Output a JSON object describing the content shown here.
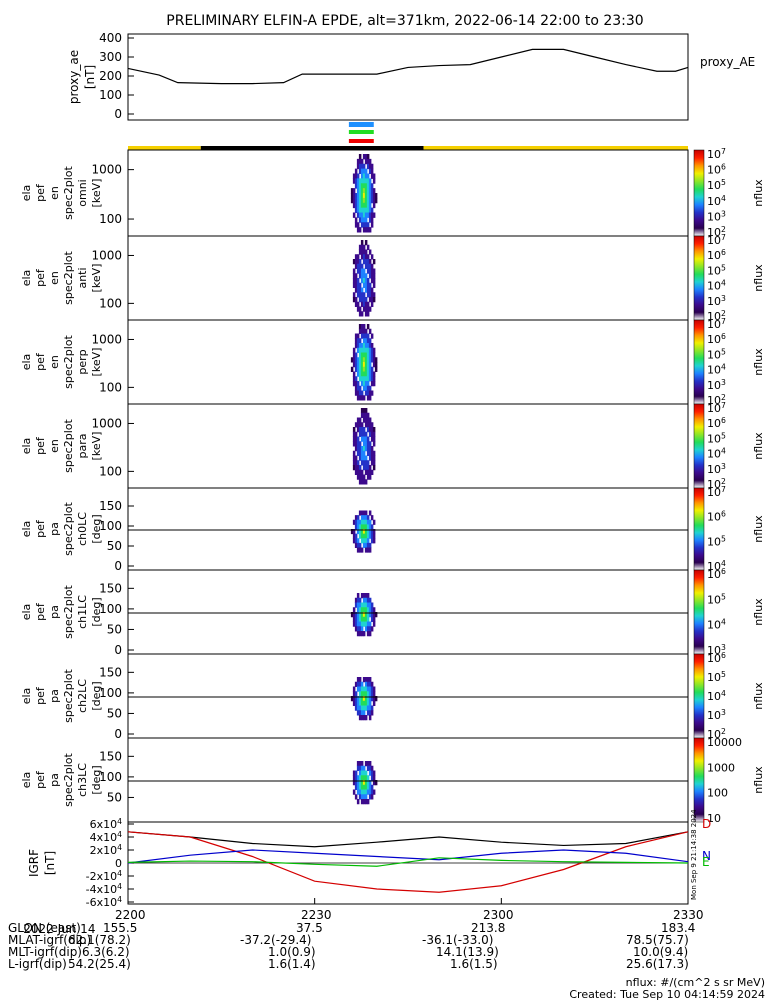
{
  "title": "PRELIMINARY ELFIN-A EPDE, alt=371km, 2022-06-14 22:00 to 23:30",
  "x_axis": {
    "start": "2022-06-14 22:00",
    "end": "2022-06-14 23:30",
    "tick_labels": [
      "2200",
      "2230",
      "2300",
      "2330"
    ],
    "tick_minutes": [
      0,
      30,
      60,
      90
    ]
  },
  "panels": [
    {
      "id": "proxy_ae",
      "ylabel": [
        "proxy_ae",
        "[nT]"
      ],
      "side_label": "proxy_AE",
      "ticks": [
        "0",
        "100",
        "200",
        "300",
        "400"
      ]
    },
    {
      "id": "en_omni",
      "ylabel": [
        "ela",
        "pef",
        "en",
        "spec2plot",
        "omni",
        "[keV]"
      ],
      "ticks": [
        "100",
        "1000"
      ],
      "colorbar": {
        "label": "nflux",
        "ticks": [
          "10^2",
          "10^3",
          "10^4",
          "10^5",
          "10^6",
          "10^7"
        ]
      }
    },
    {
      "id": "en_anti",
      "ylabel": [
        "ela",
        "pef",
        "en",
        "spec2plot",
        "anti",
        "[keV]"
      ],
      "ticks": [
        "100",
        "1000"
      ],
      "colorbar": {
        "label": "nflux",
        "ticks": [
          "10^2",
          "10^3",
          "10^4",
          "10^5",
          "10^6",
          "10^7"
        ]
      }
    },
    {
      "id": "en_perp",
      "ylabel": [
        "ela",
        "pef",
        "en",
        "spec2plot",
        "perp",
        "[keV]"
      ],
      "ticks": [
        "100",
        "1000"
      ],
      "colorbar": {
        "label": "nflux",
        "ticks": [
          "10^2",
          "10^3",
          "10^4",
          "10^5",
          "10^6",
          "10^7"
        ]
      }
    },
    {
      "id": "en_para",
      "ylabel": [
        "ela",
        "pef",
        "en",
        "spec2plot",
        "para",
        "[keV]"
      ],
      "ticks": [
        "100",
        "1000"
      ],
      "colorbar": {
        "label": "nflux",
        "ticks": [
          "10^2",
          "10^3",
          "10^4",
          "10^5",
          "10^6",
          "10^7"
        ]
      }
    },
    {
      "id": "pa_ch0",
      "ylabel": [
        "ela",
        "pef",
        "pa",
        "spec2plot",
        "ch0LC",
        "[deg]"
      ],
      "ticks": [
        "0",
        "50",
        "100",
        "150"
      ],
      "colorbar": {
        "label": "nflux",
        "ticks": [
          "10^4",
          "10^5",
          "10^6",
          "10^7"
        ]
      }
    },
    {
      "id": "pa_ch1",
      "ylabel": [
        "ela",
        "pef",
        "pa",
        "spec2plot",
        "ch1LC",
        "[deg]"
      ],
      "ticks": [
        "0",
        "50",
        "100",
        "150"
      ],
      "colorbar": {
        "label": "nflux",
        "ticks": [
          "10^3",
          "10^4",
          "10^5",
          "10^6"
        ]
      }
    },
    {
      "id": "pa_ch2",
      "ylabel": [
        "ela",
        "pef",
        "pa",
        "spec2plot",
        "ch2LC",
        "[deg]"
      ],
      "ticks": [
        "0",
        "50",
        "100",
        "150"
      ],
      "colorbar": {
        "label": "nflux",
        "ticks": [
          "10^2",
          "10^3",
          "10^4",
          "10^5",
          "10^6"
        ]
      }
    },
    {
      "id": "pa_ch3",
      "ylabel": [
        "ela",
        "pef",
        "pa",
        "spec2plot",
        "ch3LC",
        "[deg]"
      ],
      "ticks": [
        "50",
        "100",
        "150"
      ],
      "colorbar": {
        "label": "nflux",
        "ticks": [
          "10",
          "100",
          "1000",
          "10000"
        ]
      }
    },
    {
      "id": "igrf",
      "ylabel": [
        "IGRF",
        "[nT]"
      ],
      "ticks": [
        "-6x10^4",
        "-4x10^4",
        "-2x10^4",
        "0",
        "2x10^4",
        "4x10^4",
        "6x10^4"
      ],
      "legend": [
        "D",
        "N",
        "E"
      ],
      "stamp": "Mon Sep 9 21:14:38 2024"
    }
  ],
  "footer": {
    "date": "2022 Jun 14",
    "time_row": [
      "2200",
      "2230",
      "2300",
      "2330"
    ],
    "rows": [
      {
        "label": "GLON (east)",
        "values": [
          "155.5",
          "37.5",
          "213.8",
          "183.4"
        ]
      },
      {
        "label": "MLAT-igrf(dip)",
        "values": [
          "62.1(78.2)",
          "-37.2(-29.4)",
          "-36.1(-33.0)",
          "78.5(75.7)"
        ]
      },
      {
        "label": "MLT-igrf(dip)",
        "values": [
          "6.3(6.2)",
          "1.0(0.9)",
          "14.1(13.9)",
          "10.0(9.4)"
        ]
      },
      {
        "label": "L-igrf(dip)",
        "values": [
          "54.2(25.4)",
          "1.6(1.4)",
          "1.6(1.5)",
          "25.6(17.3)"
        ]
      }
    ],
    "units_note": "nflux: #/(cm^2 s sr MeV)",
    "created": "Created: Tue Sep 10 04:14:59 2024"
  },
  "colors": {
    "proxy_ae_line": "#000000",
    "igrf_D": "#d40000",
    "igrf_N": "#0000cc",
    "igrf_E": "#00bb00",
    "igrf_H": "#000000",
    "bar_yellow": "#f5d000",
    "bar_black": "#000000",
    "mark_blue": "#1e90ff",
    "mark_green": "#22dd22",
    "mark_red": "#ee0000"
  },
  "chart_data": {
    "type": "line",
    "x_unit": "minutes after 2022-06-14 22:00",
    "proxy_ae": {
      "x": [
        0,
        5,
        8,
        15,
        20,
        25,
        28,
        30,
        35,
        40,
        45,
        50,
        55,
        60,
        65,
        70,
        75,
        80,
        85,
        88,
        90
      ],
      "y": [
        240,
        205,
        165,
        160,
        160,
        165,
        210,
        210,
        210,
        210,
        245,
        255,
        260,
        300,
        340,
        340,
        300,
        260,
        225,
        225,
        245
      ]
    },
    "igrf": {
      "x": [
        0,
        10,
        20,
        30,
        40,
        50,
        60,
        70,
        80,
        90
      ],
      "H": [
        48000,
        40000,
        30000,
        25000,
        32000,
        40000,
        32000,
        27000,
        30000,
        48000
      ],
      "D": [
        48000,
        40000,
        10000,
        -28000,
        -40000,
        -45000,
        -35000,
        -10000,
        25000,
        48000
      ],
      "N": [
        0,
        12000,
        20000,
        15000,
        10000,
        5000,
        15000,
        20000,
        15000,
        2000
      ],
      "E": [
        1000,
        3000,
        2000,
        -2000,
        -5000,
        8000,
        4000,
        2000,
        1000,
        0
      ]
    },
    "spectrogram_activity": {
      "start_min": 35.5,
      "end_min": 40
    }
  }
}
